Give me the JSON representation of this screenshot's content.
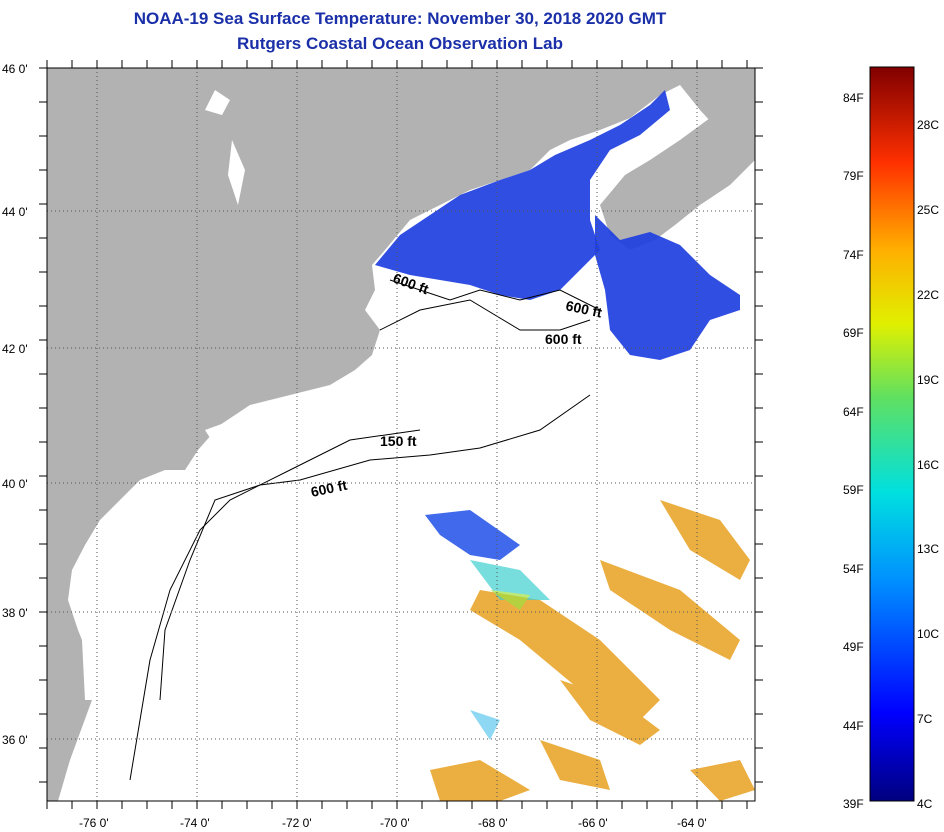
{
  "title": "NOAA-19 Sea Surface Temperature:  November 30, 2018 2020 GMT",
  "subtitle": "Rutgers Coastal Ocean Observation Lab",
  "lat_labels": [
    "46 0'",
    "44 0'",
    "42 0'",
    "40 0'",
    "38 0'",
    "36 0'"
  ],
  "lon_labels": [
    "-76 0'",
    "-74 0'",
    "-72 0'",
    "-70 0'",
    "-68 0'",
    "-66 0'",
    "-64 0'"
  ],
  "contour_labels": [
    "600 ft",
    "600 ft",
    "600 ft",
    "150 ft",
    "600 ft"
  ],
  "colorbar": {
    "f_labels": [
      "84F",
      "79F",
      "74F",
      "69F",
      "64F",
      "59F",
      "54F",
      "49F",
      "44F",
      "39F"
    ],
    "c_labels": [
      "28C",
      "25C",
      "22C",
      "19C",
      "16C",
      "13C",
      "10C",
      "7C",
      "4C"
    ]
  },
  "colors": {
    "title": "#1a2fa8",
    "land": "#b2b2b2",
    "cold_water": "#1f3fe0",
    "warm_water": "#e8a020"
  }
}
